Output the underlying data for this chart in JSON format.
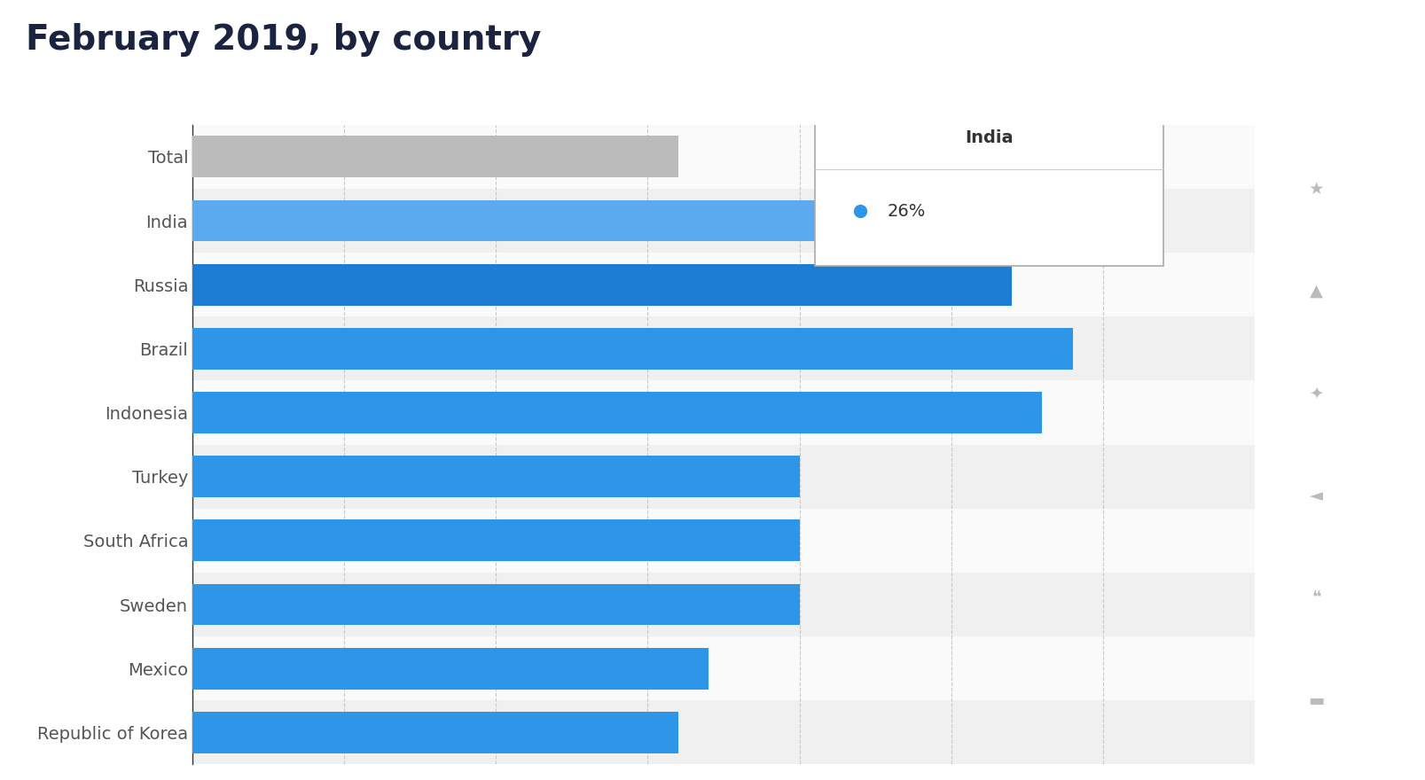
{
  "title": "February 2019, by country",
  "categories": [
    "Republic of Korea",
    "Mexico",
    "Sweden",
    "South Africa",
    "Turkey",
    "Indonesia",
    "Brazil",
    "Russia",
    "India",
    "Total"
  ],
  "values": [
    16,
    17,
    20,
    20,
    20,
    28,
    29,
    27,
    26,
    16
  ],
  "bar_colors": [
    "#2D96E8",
    "#2D96E8",
    "#2D96E8",
    "#2D96E8",
    "#2D96E8",
    "#2D96E8",
    "#2D96E8",
    "#1C7DD4",
    "#5BAAF0",
    "#BBBBBB"
  ],
  "tooltip_label": "India",
  "tooltip_value": "26%",
  "tooltip_color": "#2D96E8",
  "xlim": [
    0,
    35
  ],
  "background_color": "#ffffff",
  "chart_bg_odd": "#f5f5f5",
  "chart_bg_even": "#ebebeb",
  "title_color": "#1a2340",
  "label_color": "#555555",
  "grid_color": "#c8c8c8",
  "title_fontsize": 28,
  "label_fontsize": 14,
  "right_panel_color": "#eeeeee",
  "icon_color": "#bbbbbb",
  "tooltip_border_color": "#aaaaaa"
}
